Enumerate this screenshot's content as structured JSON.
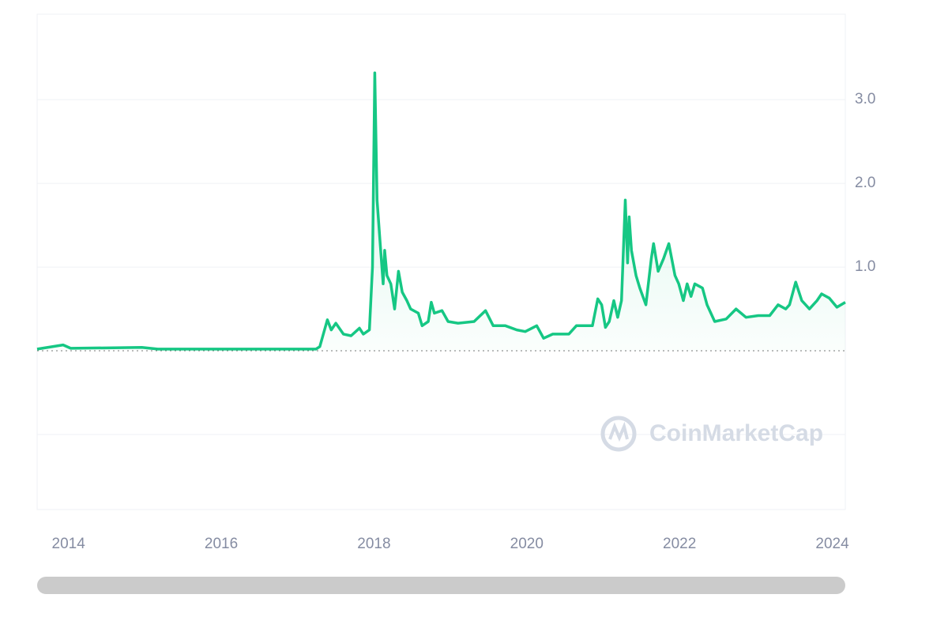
{
  "chart_data": {
    "type": "line",
    "watermark": "CoinMarketCap",
    "x": [
      2013.59,
      2013.93,
      2014.03,
      2014.96,
      2015.17,
      2017.24,
      2017.29,
      2017.39,
      2017.44,
      2017.5,
      2017.6,
      2017.7,
      2017.81,
      2017.86,
      2017.94,
      2017.98,
      2018.01,
      2018.04,
      2018.08,
      2018.12,
      2018.14,
      2018.17,
      2018.22,
      2018.27,
      2018.32,
      2018.37,
      2018.43,
      2018.48,
      2018.58,
      2018.63,
      2018.71,
      2018.75,
      2018.79,
      2018.89,
      2018.97,
      2019.1,
      2019.31,
      2019.46,
      2019.56,
      2019.72,
      2019.87,
      2019.98,
      2020.13,
      2020.22,
      2020.34,
      2020.55,
      2020.65,
      2020.86,
      2020.93,
      2020.98,
      2021.03,
      2021.08,
      2021.14,
      2021.19,
      2021.24,
      2021.29,
      2021.32,
      2021.34,
      2021.37,
      2021.43,
      2021.48,
      2021.56,
      2021.63,
      2021.66,
      2021.72,
      2021.79,
      2021.86,
      2021.94,
      2021.99,
      2022.05,
      2022.1,
      2022.15,
      2022.2,
      2022.3,
      2022.36,
      2022.46,
      2022.61,
      2022.74,
      2022.87,
      2023.03,
      2023.18,
      2023.29,
      2023.39,
      2023.44,
      2023.52,
      2023.6,
      2023.7,
      2023.8,
      2023.86,
      2023.96,
      2024.06,
      2024.17
    ],
    "values": [
      0.02,
      0.07,
      0.03,
      0.04,
      0.02,
      0.02,
      0.05,
      0.37,
      0.25,
      0.33,
      0.2,
      0.18,
      0.27,
      0.2,
      0.25,
      1.0,
      3.32,
      1.8,
      1.3,
      0.8,
      1.2,
      0.9,
      0.8,
      0.5,
      0.95,
      0.7,
      0.6,
      0.5,
      0.45,
      0.3,
      0.35,
      0.58,
      0.45,
      0.48,
      0.35,
      0.33,
      0.35,
      0.48,
      0.3,
      0.3,
      0.25,
      0.23,
      0.3,
      0.15,
      0.2,
      0.2,
      0.3,
      0.3,
      0.62,
      0.55,
      0.28,
      0.35,
      0.6,
      0.4,
      0.6,
      1.8,
      1.05,
      1.6,
      1.2,
      0.9,
      0.75,
      0.55,
      1.1,
      1.28,
      0.95,
      1.1,
      1.28,
      0.9,
      0.8,
      0.6,
      0.8,
      0.65,
      0.8,
      0.75,
      0.55,
      0.35,
      0.38,
      0.5,
      0.4,
      0.42,
      0.42,
      0.55,
      0.5,
      0.55,
      0.82,
      0.6,
      0.5,
      0.6,
      0.68,
      0.63,
      0.52,
      0.58
    ],
    "color": "#16c784",
    "xlim": [
      2013.59,
      2024.17
    ],
    "xticks": [
      2014,
      2016,
      2018,
      2020,
      2022,
      2024
    ],
    "ylim": [
      -1.896,
      4.02
    ],
    "yticks": [
      {
        "value": 1,
        "label": "1.0"
      },
      {
        "value": 2,
        "label": "2.0"
      },
      {
        "value": 3,
        "label": "3.0"
      }
    ],
    "grid": true
  }
}
